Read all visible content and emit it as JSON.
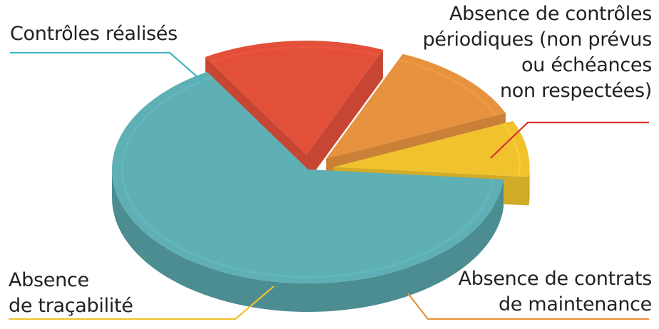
{
  "chart_data": {
    "type": "pie",
    "style": "3d-exploded",
    "title": "",
    "legend": "none",
    "categories": [
      "Contrôles réalisés",
      "Absence de contrôles périodiques (non prévus ou échéances non respectées)",
      "Absence de contrats de maintenance",
      "Absence de traçabilité"
    ],
    "values": [
      65,
      15,
      12,
      8
    ],
    "colors": [
      "#5eb0b5",
      "#e2503a",
      "#e6923e",
      "#efc22e"
    ],
    "label_lines": [
      [
        "Contrôles réalisés"
      ],
      [
        "Absence de contrôles",
        "périodiques (non prévus",
        "ou échéances",
        "non respectées)"
      ],
      [
        "Absence de contrats",
        "de maintenance"
      ],
      [
        "Absence",
        "de traçabilité"
      ]
    ]
  }
}
